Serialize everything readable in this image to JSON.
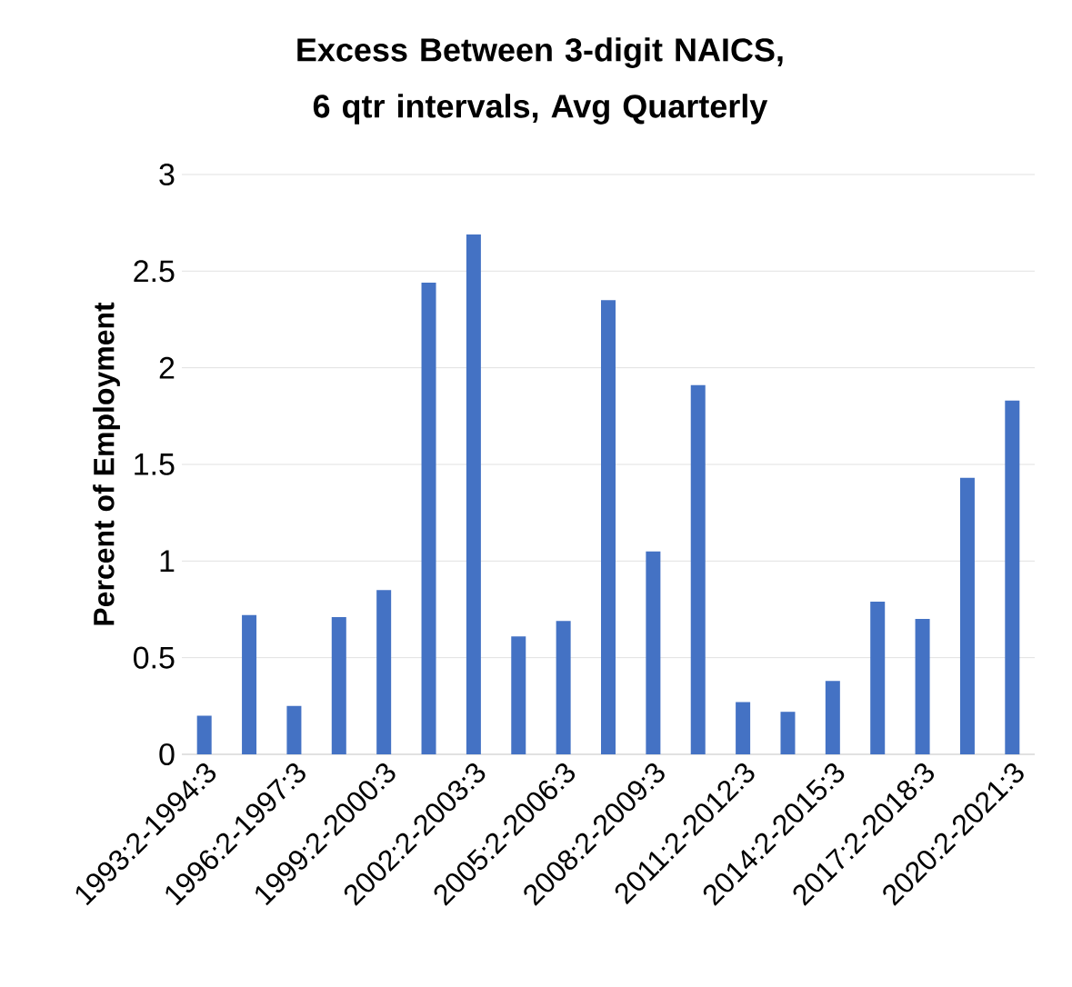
{
  "chart_data": {
    "type": "bar",
    "title": "Excess Between 3-digit NAICS, 6 qtr intervals, Avg Quarterly",
    "ylabel": "Percent of Employment",
    "categories": [
      "1993:2-1994:3",
      null,
      "1996:2-1997:3",
      null,
      "1999:2-2000:3",
      null,
      "2002:2-2003:3",
      null,
      "2005:2-2006:3",
      null,
      "2008:2-2009:3",
      null,
      "2011:2-2012:3",
      null,
      "2014:2-2015:3",
      null,
      "2017:2-2018:3",
      null,
      "2020:2-2021:3"
    ],
    "values": [
      0.2,
      0.72,
      0.25,
      0.71,
      0.85,
      2.44,
      2.69,
      0.61,
      0.69,
      2.35,
      1.05,
      1.91,
      0.27,
      0.22,
      0.38,
      0.79,
      0.7,
      1.43,
      1.83
    ],
    "color": "#4472c4",
    "ylim": [
      0,
      3
    ],
    "yticks": [
      0,
      0.5,
      1,
      1.5,
      2,
      2.5,
      3
    ],
    "grid": "y"
  }
}
